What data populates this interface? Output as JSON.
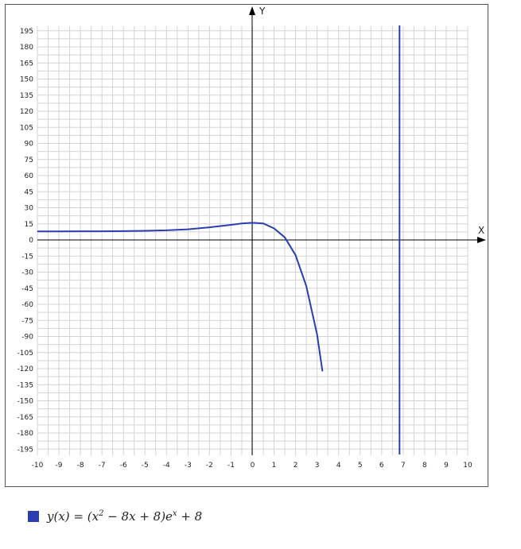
{
  "chart_data": {
    "type": "line",
    "xlabel": "X",
    "ylabel": "Y",
    "xlim": [
      -10,
      10
    ],
    "ylim": [
      -200,
      200
    ],
    "x_ticks": [
      -10,
      -9,
      -8,
      -7,
      -6,
      -5,
      -4,
      -3,
      -2,
      -1,
      0,
      1,
      2,
      3,
      4,
      5,
      6,
      7,
      8,
      9,
      10
    ],
    "y_ticks": [
      195,
      180,
      165,
      150,
      135,
      120,
      105,
      90,
      75,
      60,
      45,
      30,
      15,
      0,
      -15,
      -30,
      -45,
      -60,
      -75,
      -90,
      -105,
      -120,
      -135,
      -150,
      -165,
      -180,
      -195
    ],
    "grid": true,
    "series": [
      {
        "name": "y(x) = (x2 − 8x + 8)e^x + 8",
        "color": "#2a3eb1",
        "x": [
          -10,
          -9,
          -8,
          -7,
          -6,
          -5,
          -4,
          -3,
          -2,
          -1,
          -0.5,
          0,
          0.5,
          1,
          1.5,
          2,
          2.5,
          3,
          3.25
        ],
        "y": [
          8.0,
          8.02,
          8.05,
          8.11,
          8.24,
          8.49,
          8.95,
          9.94,
          11.8,
          14.1,
          15.4,
          16,
          15.4,
          10.72,
          2.4,
          -14.2,
          -43.1,
          -88.4,
          -122.5
        ]
      },
      {
        "name": "",
        "color": "#2a3eb1",
        "x": [
          6.83,
          6.83
        ],
        "y": [
          -200,
          200
        ]
      }
    ],
    "legend": {
      "position": "bottom-left",
      "text_main": "y(x) = (x",
      "text_sup1": "2",
      "text_mid": " − 8x + 8)e",
      "text_sup2": "x",
      "text_end": " + 8"
    }
  }
}
